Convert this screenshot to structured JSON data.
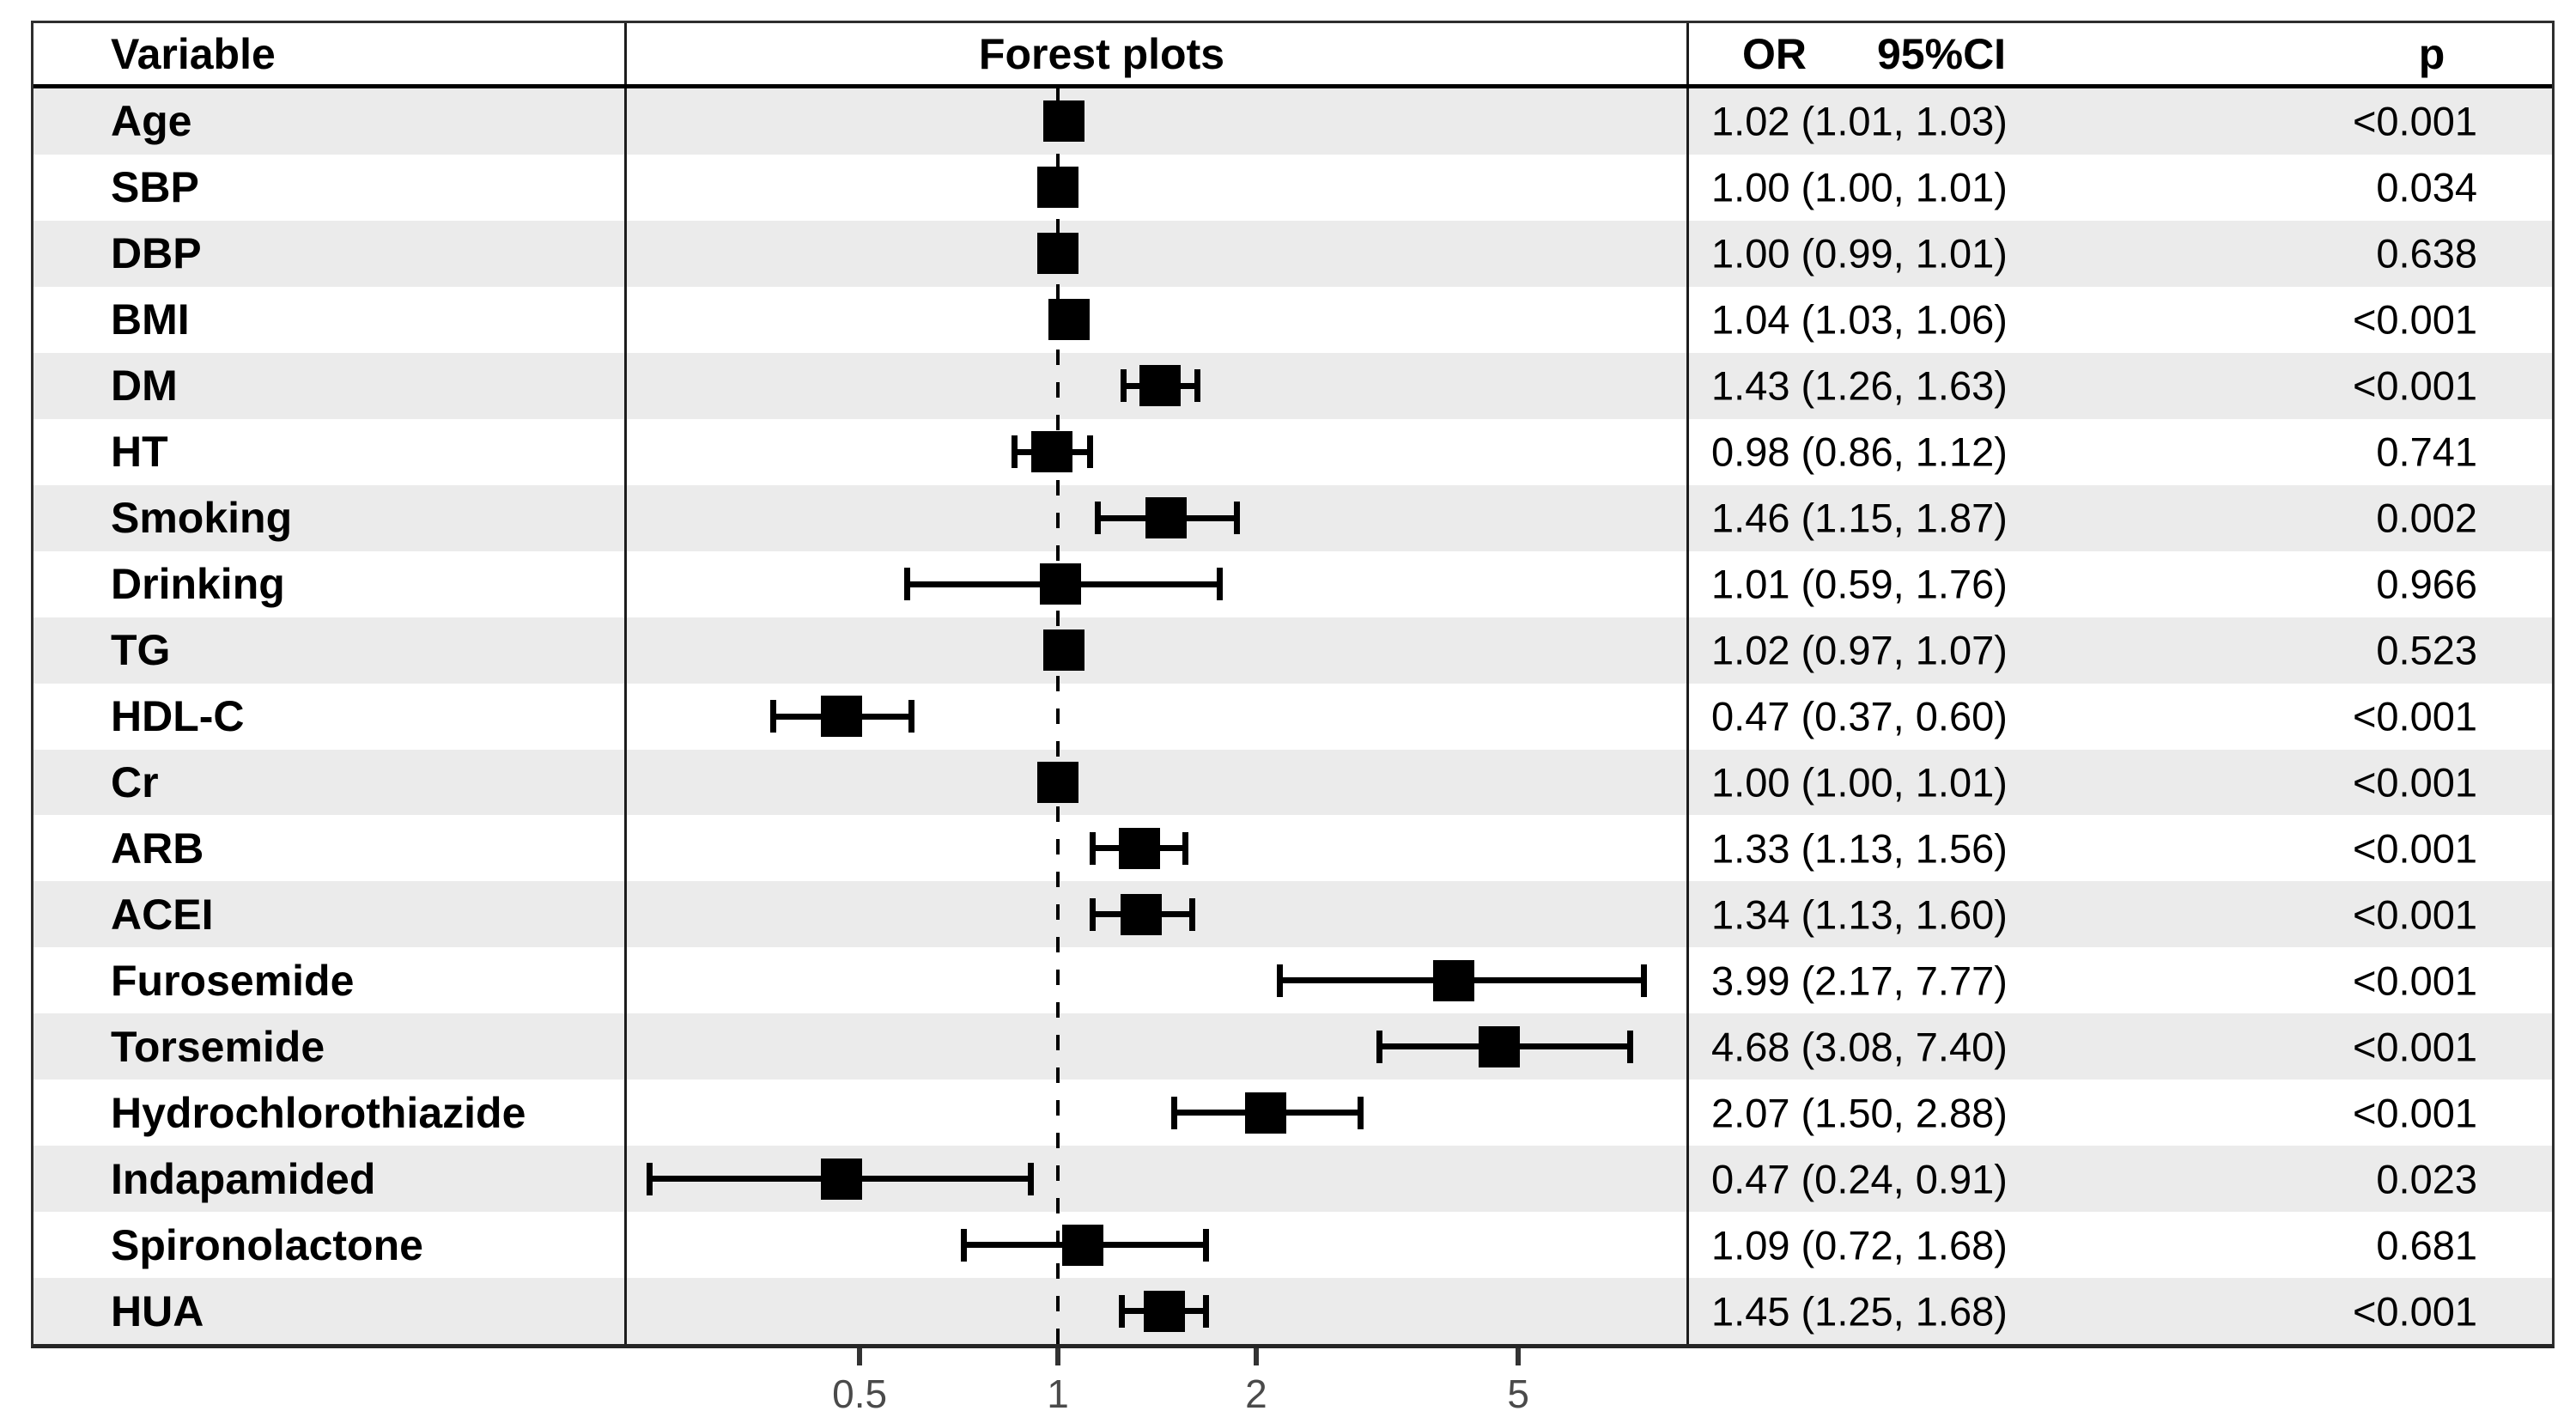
{
  "header": {
    "variable": "Variable",
    "forest": "Forest plots",
    "or": "OR",
    "ci": "95%CI",
    "p": "p"
  },
  "colors": {
    "stripe": "#ebebeb",
    "marker": "#000000",
    "reference_line": "#000000",
    "border": "#2e2e2e",
    "header_separator": "#000000",
    "axis_tick": "#333333",
    "axis_label": "#4a4a4a"
  },
  "chart_data": {
    "type": "forest",
    "x_scale": "log10",
    "x_ticks": [
      0.5,
      1,
      2,
      5
    ],
    "x_tick_labels": [
      "0.5",
      "1",
      "2",
      "5"
    ],
    "reference_line": 1,
    "columns": [
      "Variable",
      "Forest plots",
      "OR 95%CI",
      "p"
    ],
    "rows": [
      {
        "label": "Age",
        "or": 1.02,
        "ci_low": 1.01,
        "ci_high": 1.03,
        "or_ci_text": "1.02 (1.01, 1.03)",
        "p_text": "<0.001"
      },
      {
        "label": "SBP",
        "or": 1.0,
        "ci_low": 1.0,
        "ci_high": 1.01,
        "or_ci_text": "1.00 (1.00, 1.01)",
        "p_text": "0.034"
      },
      {
        "label": "DBP",
        "or": 1.0,
        "ci_low": 0.99,
        "ci_high": 1.01,
        "or_ci_text": "1.00 (0.99, 1.01)",
        "p_text": "0.638"
      },
      {
        "label": "BMI",
        "or": 1.04,
        "ci_low": 1.03,
        "ci_high": 1.06,
        "or_ci_text": "1.04 (1.03, 1.06)",
        "p_text": "<0.001"
      },
      {
        "label": "DM",
        "or": 1.43,
        "ci_low": 1.26,
        "ci_high": 1.63,
        "or_ci_text": "1.43 (1.26, 1.63)",
        "p_text": "<0.001"
      },
      {
        "label": "HT",
        "or": 0.98,
        "ci_low": 0.86,
        "ci_high": 1.12,
        "or_ci_text": "0.98 (0.86, 1.12)",
        "p_text": "0.741"
      },
      {
        "label": "Smoking",
        "or": 1.46,
        "ci_low": 1.15,
        "ci_high": 1.87,
        "or_ci_text": "1.46 (1.15, 1.87)",
        "p_text": "0.002"
      },
      {
        "label": "Drinking",
        "or": 1.01,
        "ci_low": 0.59,
        "ci_high": 1.76,
        "or_ci_text": "1.01 (0.59, 1.76)",
        "p_text": "0.966"
      },
      {
        "label": "TG",
        "or": 1.02,
        "ci_low": 0.97,
        "ci_high": 1.07,
        "or_ci_text": "1.02 (0.97, 1.07)",
        "p_text": "0.523"
      },
      {
        "label": "HDL-C",
        "or": 0.47,
        "ci_low": 0.37,
        "ci_high": 0.6,
        "or_ci_text": "0.47 (0.37, 0.60)",
        "p_text": "<0.001"
      },
      {
        "label": "Cr",
        "or": 1.0,
        "ci_low": 1.0,
        "ci_high": 1.01,
        "or_ci_text": "1.00 (1.00, 1.01)",
        "p_text": "<0.001"
      },
      {
        "label": "ARB",
        "or": 1.33,
        "ci_low": 1.13,
        "ci_high": 1.56,
        "or_ci_text": "1.33 (1.13, 1.56)",
        "p_text": "<0.001"
      },
      {
        "label": "ACEI",
        "or": 1.34,
        "ci_low": 1.13,
        "ci_high": 1.6,
        "or_ci_text": "1.34 (1.13, 1.60)",
        "p_text": "<0.001"
      },
      {
        "label": "Furosemide",
        "or": 3.99,
        "ci_low": 2.17,
        "ci_high": 7.77,
        "or_ci_text": "3.99 (2.17, 7.77)",
        "p_text": "<0.001"
      },
      {
        "label": "Torsemide",
        "or": 4.68,
        "ci_low": 3.08,
        "ci_high": 7.4,
        "or_ci_text": "4.68 (3.08, 7.40)",
        "p_text": "<0.001"
      },
      {
        "label": "Hydrochlorothiazide",
        "or": 2.07,
        "ci_low": 1.5,
        "ci_high": 2.88,
        "or_ci_text": "2.07 (1.50, 2.88)",
        "p_text": "<0.001"
      },
      {
        "label": "Indapamided",
        "or": 0.47,
        "ci_low": 0.24,
        "ci_high": 0.91,
        "or_ci_text": "0.47 (0.24, 0.91)",
        "p_text": "0.023"
      },
      {
        "label": "Spironolactone",
        "or": 1.09,
        "ci_low": 0.72,
        "ci_high": 1.68,
        "or_ci_text": "1.09 (0.72, 1.68)",
        "p_text": "0.681"
      },
      {
        "label": "HUA",
        "or": 1.45,
        "ci_low": 1.25,
        "ci_high": 1.68,
        "or_ci_text": "1.45 (1.25, 1.68)",
        "p_text": "<0.001"
      }
    ]
  }
}
